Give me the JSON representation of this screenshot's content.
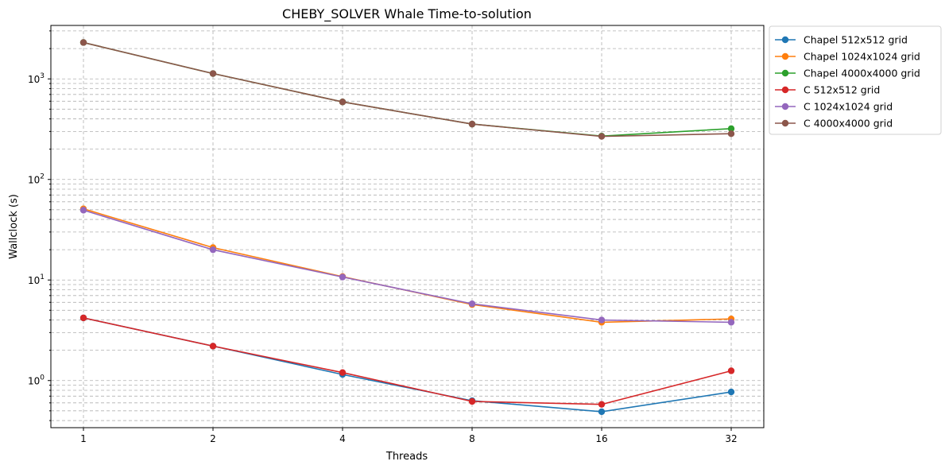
{
  "chart_data": {
    "type": "line",
    "title": "CHEBY_SOLVER Whale Time-to-solution",
    "xlabel": "Threads",
    "ylabel": "Wallclock (s)",
    "x": [
      1,
      2,
      4,
      8,
      16,
      32
    ],
    "x_tick_labels": [
      "1",
      "2",
      "4",
      "8",
      "16",
      "32"
    ],
    "x_scale": "log2",
    "y_scale": "log",
    "ylim": [
      0.34,
      3400
    ],
    "y_tick_labels": [
      {
        "value": 1,
        "base": "10",
        "exp": "0"
      },
      {
        "value": 10,
        "base": "10",
        "exp": "1"
      },
      {
        "value": 100,
        "base": "10",
        "exp": "2"
      },
      {
        "value": 1000,
        "base": "10",
        "exp": "3"
      }
    ],
    "grid": true,
    "legend_position": "outside-top-right",
    "series": [
      {
        "name": "Chapel 512x512 grid",
        "color": "#1f77b4",
        "values": [
          4.2,
          2.2,
          1.15,
          0.63,
          0.49,
          0.77
        ]
      },
      {
        "name": "Chapel 1024x1024 grid",
        "color": "#ff7f0e",
        "values": [
          51,
          21,
          10.8,
          5.7,
          3.8,
          4.1
        ]
      },
      {
        "name": "Chapel 4000x4000 grid",
        "color": "#2ca02c",
        "values": [
          2300,
          1130,
          590,
          355,
          270,
          320
        ]
      },
      {
        "name": "C 512x512 grid",
        "color": "#d62728",
        "values": [
          4.2,
          2.2,
          1.2,
          0.62,
          0.58,
          1.25
        ]
      },
      {
        "name": "C 1024x1024 grid",
        "color": "#9467bd",
        "values": [
          49.5,
          20,
          10.7,
          5.8,
          4.0,
          3.8
        ]
      },
      {
        "name": "C 4000x4000 grid",
        "color": "#8c564b",
        "values": [
          2300,
          1130,
          590,
          355,
          268,
          285
        ]
      }
    ]
  }
}
